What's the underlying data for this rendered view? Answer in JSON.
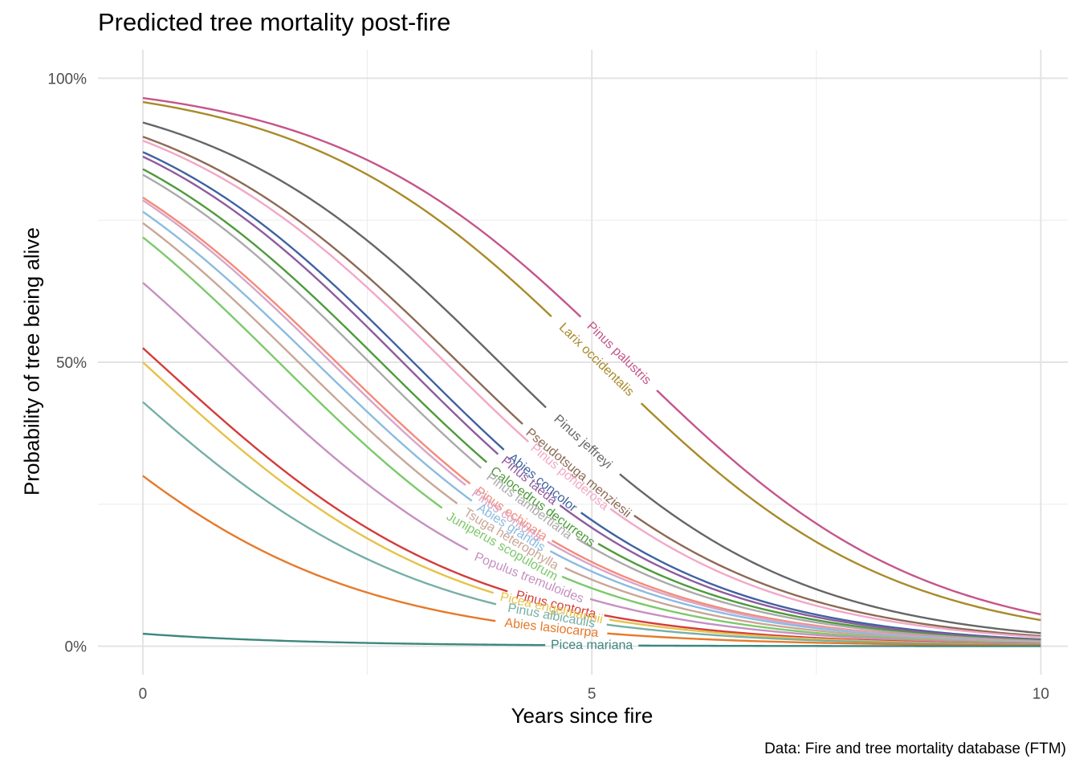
{
  "chart_data": {
    "type": "line",
    "title": "Predicted tree mortality post-fire",
    "xlabel": "Years since fire",
    "ylabel": "Probability of tree being alive",
    "caption": "Data: Fire and tree mortality database (FTM)",
    "xlim": [
      -0.5,
      10.3
    ],
    "ylim": [
      -0.05,
      1.05
    ],
    "x_ticks": [
      0,
      5,
      10
    ],
    "x_tick_labels": [
      "0",
      "5",
      "10"
    ],
    "y_ticks": [
      0,
      0.5,
      1
    ],
    "y_tick_labels": [
      "0%",
      "50%",
      "100%"
    ],
    "grid": true,
    "legend": "none",
    "series_shape": "logistic curve, x from 0 to 10; value = 1/(1+exp(-(a + b*x)))",
    "series": [
      {
        "name": "Pinus palustris",
        "color": "#C5558A",
        "start": 0.965,
        "end": 0.056,
        "label_x": 5.3
      },
      {
        "name": "Larix occidentalis",
        "color": "#A88A2A",
        "start": 0.958,
        "end": 0.046,
        "label_x": 5.05
      },
      {
        "name": "Pinus jeffreyi",
        "color": "#666666",
        "start": 0.922,
        "end": 0.023,
        "label_x": 4.9
      },
      {
        "name": "Pseudotsuga menziesii",
        "color": "#8C6A55",
        "start": 0.897,
        "end": 0.018,
        "label_x": 4.85
      },
      {
        "name": "Pinus ponderosa",
        "color": "#F2A8C6",
        "start": 0.89,
        "end": 0.016,
        "label_x": 4.75
      },
      {
        "name": "Abies concolor",
        "color": "#3F62A0",
        "start": 0.87,
        "end": 0.012,
        "label_x": 4.45
      },
      {
        "name": "Pinus taeda",
        "color": "#8E5B9E",
        "start": 0.862,
        "end": 0.011,
        "label_x": 4.3
      },
      {
        "name": "Calocedrus decurrens",
        "color": "#4E9A3C",
        "start": 0.84,
        "end": 0.01,
        "label_x": 4.45
      },
      {
        "name": "Pinus lambertiana",
        "color": "#AAAAAA",
        "start": 0.83,
        "end": 0.009,
        "label_x": 4.3
      },
      {
        "name": "Pinus echinata",
        "color": "#F48A7A",
        "start": 0.79,
        "end": 0.008,
        "label_x": 4.1
      },
      {
        "name": "Pinus contorta",
        "color": "#D8A6C8",
        "start": 0.785,
        "end": 0.0075,
        "label_x": 4.05
      },
      {
        "name": "Abies grandis",
        "color": "#8ABCE0",
        "start": 0.765,
        "end": 0.007,
        "label_x": 4.1
      },
      {
        "name": "Tsuga heterophylla",
        "color": "#C9A696",
        "start": 0.745,
        "end": 0.006,
        "label_x": 4.1
      },
      {
        "name": "Juniperus scopulorum",
        "color": "#7CC96A",
        "start": 0.72,
        "end": 0.005,
        "label_x": 4.0
      },
      {
        "name": "Populus tremuloides",
        "color": "#C690C0",
        "start": 0.64,
        "end": 0.0045,
        "label_x": 4.3
      },
      {
        "name": "Pinus contorta",
        "color": "#D43B3B",
        "start": 0.525,
        "end": 0.0035,
        "label_x": 4.6
      },
      {
        "name": "Picea engelmannii",
        "color": "#E6C24A",
        "start": 0.5,
        "end": 0.003,
        "label_x": 4.55
      },
      {
        "name": "Pinus albicaulis",
        "color": "#76AFA6",
        "start": 0.43,
        "end": 0.0025,
        "label_x": 4.55
      },
      {
        "name": "Abies lasiocarpa",
        "color": "#E6792A",
        "start": 0.3,
        "end": 0.0015,
        "label_x": 4.55
      },
      {
        "name": "Picea mariana",
        "color": "#3D877E",
        "start": 0.022,
        "end": 0.0001,
        "label_x": 5.0
      }
    ]
  }
}
